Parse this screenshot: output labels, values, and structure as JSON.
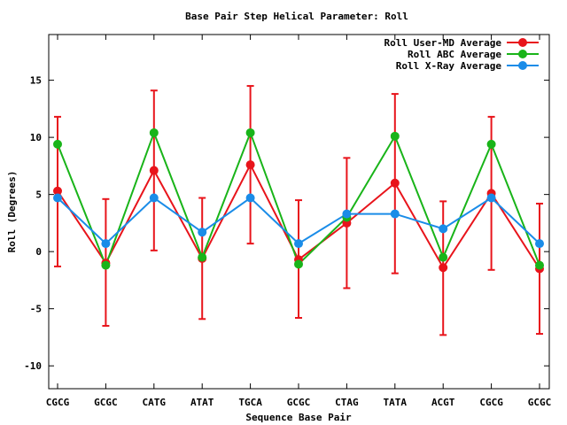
{
  "chart_data": {
    "type": "line",
    "title": "Base Pair Step Helical Parameter: Roll",
    "xlabel": "Sequence Base Pair",
    "ylabel": "Roll (Degrees)",
    "categories": [
      "CGCG",
      "GCGC",
      "CATG",
      "ATAT",
      "TGCA",
      "GCGC",
      "CTAG",
      "TATA",
      "ACGT",
      "CGCG",
      "GCGC"
    ],
    "ylim": [
      -12,
      19
    ],
    "yticks": [
      -10,
      -5,
      0,
      5,
      10,
      15
    ],
    "grid": false,
    "legend_position": "top-right",
    "series": [
      {
        "name": "Roll User-MD Average",
        "color": "#e8141b",
        "values": [
          5.3,
          -1.0,
          7.1,
          -0.6,
          7.6,
          -0.7,
          2.5,
          6.0,
          -1.4,
          5.1,
          -1.5
        ],
        "error_low": [
          -1.3,
          -6.5,
          0.1,
          -5.9,
          0.7,
          -5.8,
          -3.2,
          -1.9,
          -7.3,
          -1.6,
          -7.2
        ],
        "error_high": [
          11.8,
          4.6,
          14.1,
          4.7,
          14.5,
          4.5,
          8.2,
          13.8,
          4.4,
          11.8,
          4.2
        ]
      },
      {
        "name": "Roll ABC Average",
        "color": "#19b419",
        "values": [
          9.4,
          -1.2,
          10.4,
          -0.5,
          10.4,
          -1.1,
          3.0,
          10.1,
          -0.5,
          9.4,
          -1.2
        ]
      },
      {
        "name": "Roll X-Ray Average",
        "color": "#1a8ce8",
        "values": [
          4.7,
          0.7,
          4.7,
          1.7,
          4.7,
          0.7,
          3.3,
          3.3,
          2.0,
          4.7,
          0.7
        ]
      }
    ]
  }
}
